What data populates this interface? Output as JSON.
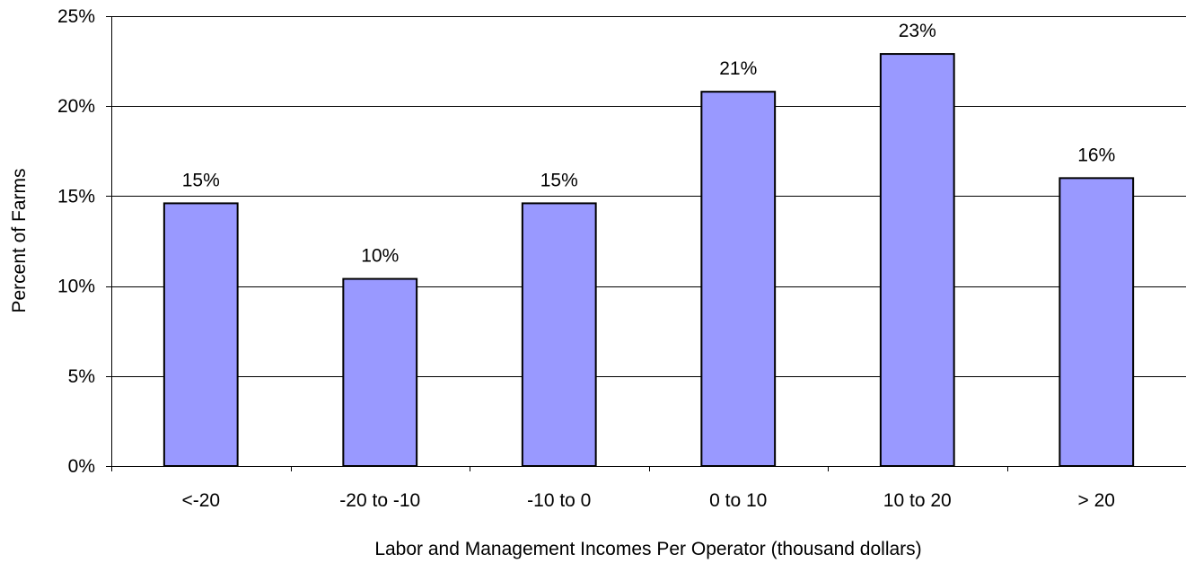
{
  "chart_data": {
    "type": "bar",
    "categories": [
      "<-20",
      "-20 to -10",
      "-10 to 0",
      "0 to 10",
      "10 to 20",
      "> 20"
    ],
    "values": [
      14.6,
      10.4,
      14.6,
      20.8,
      22.9,
      16.0
    ],
    "data_labels": [
      "15%",
      "10%",
      "15%",
      "21%",
      "23%",
      "16%"
    ],
    "title": "",
    "xlabel": "Labor and Management Incomes Per Operator (thousand dollars)",
    "ylabel": "Percent of Farms",
    "ylim": [
      0,
      25
    ],
    "yticks": [
      0,
      5,
      10,
      15,
      20,
      25
    ],
    "ytick_labels": [
      "0%",
      "5%",
      "10%",
      "15%",
      "20%",
      "25%"
    ],
    "grid": true,
    "legend": "none",
    "colors": {
      "bar_fill": "#9999ff",
      "bar_stroke": "#000000",
      "gridline": "#000000",
      "axis": "#000000"
    }
  }
}
